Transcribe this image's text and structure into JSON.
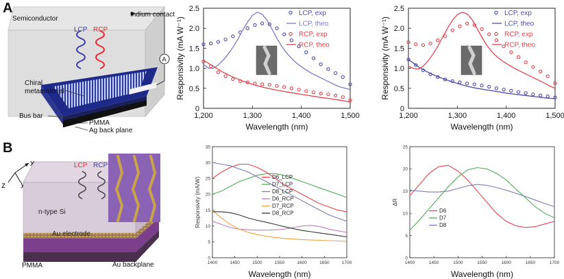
{
  "panels": {
    "a": "A",
    "b": "B"
  },
  "diagram_a": {
    "semiconductor": "Semiconductor",
    "indium": "Indium contact",
    "lcp": "LCP",
    "rcp": "RCP",
    "chiral1": "Chiral",
    "chiral2": "metamaterial",
    "busbar": "Bus bar",
    "pmma": "PMMA",
    "ag": "Ag back plane",
    "meter": "A"
  },
  "diagram_b": {
    "x": "x",
    "y": "y",
    "z": "z",
    "lcp": "LCP",
    "rcp": "RCP",
    "nsi": "n-type Si",
    "au_electrode": "Au electrode",
    "pmma": "PMMA",
    "au_backplane": "Au backplane"
  },
  "colors": {
    "blue": "#4b4ba8",
    "red": "#e8424a",
    "green": "#4caf50",
    "purple": "#c07cc4",
    "orange": "#f0a040",
    "black": "#333333",
    "slate": "#7a7ab8"
  },
  "chart_data": [
    {
      "id": "a1",
      "type": "line",
      "xlabel": "Wavelength (nm)",
      "ylabel": "Responsivity (mA W⁻¹)",
      "xlim": [
        1200,
        1500
      ],
      "ylim": [
        0,
        2.5
      ],
      "xticks": [
        1200,
        1300,
        1400,
        1500
      ],
      "xtick_labels": [
        "1,200",
        "1,300",
        "1,400",
        "1,500"
      ],
      "yticks": [
        0,
        0.5,
        1.0,
        1.5,
        2.0,
        2.5
      ],
      "ytick_labels": [
        "0",
        "0.5",
        "1.0",
        "1.5",
        "2.0",
        "2.5"
      ],
      "legend": [
        "LCP, exp",
        "LCP, theo",
        "RCP, exp",
        "RCP, theo"
      ],
      "series": [
        {
          "name": "LCP, exp",
          "kind": "scatter",
          "color": "#4b4ba8",
          "x": [
            1200,
            1215,
            1230,
            1245,
            1260,
            1275,
            1290,
            1305,
            1320,
            1335,
            1350,
            1365,
            1380,
            1395,
            1410,
            1425,
            1440,
            1455,
            1470,
            1485,
            1500
          ],
          "y": [
            1.6,
            1.62,
            1.66,
            1.72,
            1.8,
            1.9,
            2.0,
            2.08,
            2.12,
            2.1,
            2.0,
            1.85,
            1.7,
            1.55,
            1.4,
            1.25,
            1.1,
            0.98,
            0.88,
            0.78,
            0.6
          ]
        },
        {
          "name": "LCP, theo",
          "kind": "line",
          "color": "#7a7ac8",
          "x": [
            1200,
            1210,
            1220,
            1230,
            1240,
            1250,
            1260,
            1270,
            1280,
            1290,
            1300,
            1310,
            1320,
            1330,
            1340,
            1350,
            1360,
            1370,
            1380,
            1390,
            1400,
            1410,
            1420,
            1430,
            1440,
            1450,
            1460,
            1470,
            1480,
            1490,
            1500
          ],
          "y": [
            1.1,
            1.0,
            1.0,
            1.08,
            1.2,
            1.35,
            1.52,
            1.72,
            1.95,
            2.15,
            2.32,
            2.4,
            2.35,
            2.2,
            1.98,
            1.75,
            1.55,
            1.38,
            1.25,
            1.13,
            1.04,
            0.96,
            0.88,
            0.82,
            0.76,
            0.7,
            0.64,
            0.58,
            0.53,
            0.5,
            0.47
          ]
        },
        {
          "name": "RCP, exp",
          "kind": "scatter",
          "color": "#e8424a",
          "x": [
            1200,
            1215,
            1230,
            1245,
            1260,
            1275,
            1290,
            1305,
            1320,
            1335,
            1350,
            1365,
            1380,
            1395,
            1410,
            1425,
            1440,
            1455,
            1470,
            1485,
            1500
          ],
          "y": [
            1.17,
            1.05,
            0.9,
            0.8,
            0.73,
            0.68,
            0.65,
            0.62,
            0.6,
            0.59,
            0.56,
            0.53,
            0.5,
            0.47,
            0.43,
            0.4,
            0.37,
            0.35,
            0.32,
            0.28,
            0.2
          ]
        },
        {
          "name": "RCP, theo",
          "kind": "line",
          "color": "#e8424a",
          "x": [
            1200,
            1220,
            1240,
            1260,
            1280,
            1300,
            1320,
            1340,
            1360,
            1380,
            1400,
            1420,
            1440,
            1460,
            1480,
            1500
          ],
          "y": [
            1.2,
            1.05,
            0.9,
            0.78,
            0.68,
            0.6,
            0.53,
            0.48,
            0.43,
            0.39,
            0.35,
            0.31,
            0.27,
            0.24,
            0.2,
            0.16
          ]
        }
      ]
    },
    {
      "id": "a2",
      "type": "line",
      "xlabel": "Wavelength (nm)",
      "ylabel": "Responsivity (mA W⁻¹)",
      "xlim": [
        1200,
        1500
      ],
      "ylim": [
        0,
        2.5
      ],
      "xticks": [
        1200,
        1300,
        1400,
        1500
      ],
      "xtick_labels": [
        "1,200",
        "1,300",
        "1,400",
        "1,500"
      ],
      "yticks": [
        0,
        0.5,
        1.0,
        1.5,
        2.0,
        2.5
      ],
      "ytick_labels": [
        "0",
        "0.5",
        "1.0",
        "1.5",
        "2.0",
        "2.5"
      ],
      "legend": [
        "LCP, exp",
        "LCP, theo",
        "RCP, exp",
        "RCP, theo"
      ],
      "series": [
        {
          "name": "LCP, exp",
          "kind": "scatter",
          "color": "#4b4ba8",
          "x": [
            1200,
            1215,
            1230,
            1245,
            1260,
            1275,
            1290,
            1305,
            1320,
            1335,
            1350,
            1365,
            1380,
            1395,
            1410,
            1425,
            1440,
            1455,
            1470,
            1485,
            1500
          ],
          "y": [
            1.22,
            1.08,
            0.95,
            0.85,
            0.78,
            0.72,
            0.68,
            0.65,
            0.62,
            0.6,
            0.57,
            0.54,
            0.5,
            0.47,
            0.44,
            0.41,
            0.38,
            0.35,
            0.32,
            0.3,
            0.27
          ]
        },
        {
          "name": "LCP, theo",
          "kind": "line",
          "color": "#4b4ba8",
          "x": [
            1200,
            1220,
            1240,
            1260,
            1280,
            1300,
            1320,
            1340,
            1360,
            1380,
            1400,
            1420,
            1440,
            1460,
            1480,
            1500
          ],
          "y": [
            1.22,
            1.04,
            0.9,
            0.79,
            0.7,
            0.62,
            0.55,
            0.5,
            0.46,
            0.42,
            0.38,
            0.35,
            0.32,
            0.29,
            0.26,
            0.24
          ]
        },
        {
          "name": "RCP, exp",
          "kind": "scatter",
          "color": "#e8424a",
          "x": [
            1200,
            1215,
            1230,
            1245,
            1260,
            1275,
            1290,
            1305,
            1320,
            1335,
            1350,
            1365,
            1380,
            1395,
            1410,
            1425,
            1440,
            1455,
            1470,
            1485,
            1500
          ],
          "y": [
            1.65,
            1.6,
            1.58,
            1.62,
            1.7,
            1.8,
            1.95,
            2.05,
            2.12,
            2.08,
            1.98,
            1.85,
            1.7,
            1.55,
            1.4,
            1.28,
            1.15,
            1.03,
            0.92,
            0.8,
            0.63
          ]
        },
        {
          "name": "RCP, theo",
          "kind": "line",
          "color": "#e8424a",
          "x": [
            1200,
            1210,
            1220,
            1230,
            1240,
            1250,
            1260,
            1270,
            1280,
            1290,
            1300,
            1310,
            1320,
            1330,
            1340,
            1350,
            1360,
            1370,
            1380,
            1390,
            1400,
            1410,
            1420,
            1430,
            1440,
            1450,
            1460,
            1470,
            1480,
            1490,
            1500
          ],
          "y": [
            1.05,
            1.0,
            0.98,
            1.05,
            1.18,
            1.35,
            1.55,
            1.78,
            2.0,
            2.2,
            2.34,
            2.4,
            2.36,
            2.22,
            2.0,
            1.78,
            1.58,
            1.42,
            1.3,
            1.2,
            1.12,
            1.05,
            0.98,
            0.92,
            0.86,
            0.8,
            0.74,
            0.68,
            0.62,
            0.55,
            0.5
          ]
        }
      ]
    },
    {
      "id": "b1",
      "type": "line",
      "xlabel": "Wavelength (nm)",
      "ylabel": "Responsivity (mA/W)",
      "xlim": [
        1400,
        1700
      ],
      "ylim": [
        0,
        35
      ],
      "xticks": [
        1400,
        1450,
        1500,
        1550,
        1600,
        1650,
        1700
      ],
      "xtick_labels": [
        "1400",
        "1450",
        "1500",
        "1550",
        "1600",
        "1650",
        "1700"
      ],
      "yticks": [
        0,
        5,
        10,
        15,
        20,
        25,
        30,
        35
      ],
      "ytick_labels": [
        "0",
        "5",
        "10",
        "15",
        "20",
        "25",
        "30",
        "35"
      ],
      "legend": [
        "D6_LCP",
        "D7_LCP",
        "D8_LCP",
        "D6_RCP",
        "D7_RCP",
        "D8_RCP"
      ],
      "series": [
        {
          "name": "D6_LCP",
          "kind": "line",
          "color": "#e8424a",
          "x": [
            1400,
            1420,
            1440,
            1460,
            1480,
            1500,
            1520,
            1540,
            1560,
            1580,
            1600,
            1620,
            1640,
            1660,
            1680,
            1700
          ],
          "y": [
            25,
            27,
            28.5,
            29.5,
            29.5,
            28.5,
            27,
            25,
            23,
            21.5,
            20,
            18.5,
            17,
            16,
            15,
            14.5
          ]
        },
        {
          "name": "D7_LCP",
          "kind": "line",
          "color": "#4caf50",
          "x": [
            1400,
            1420,
            1440,
            1460,
            1480,
            1500,
            1520,
            1540,
            1560,
            1580,
            1600,
            1620,
            1640,
            1660,
            1680,
            1700
          ],
          "y": [
            20,
            21,
            22.5,
            24,
            25,
            26,
            26.5,
            26.5,
            26,
            25,
            24,
            23,
            22,
            21,
            20,
            19
          ]
        },
        {
          "name": "D8_LCP",
          "kind": "line",
          "color": "#7a7ab8",
          "x": [
            1400,
            1420,
            1440,
            1460,
            1480,
            1500,
            1520,
            1540,
            1560,
            1580,
            1600,
            1620,
            1640,
            1660,
            1680,
            1700
          ],
          "y": [
            30,
            29.5,
            29,
            28,
            27,
            25.5,
            24,
            22.5,
            21,
            19.5,
            18,
            16.5,
            15,
            13.5,
            12.5,
            11.5
          ]
        },
        {
          "name": "D6_RCP",
          "kind": "line",
          "color": "#c07cc4",
          "x": [
            1400,
            1420,
            1440,
            1460,
            1480,
            1500,
            1520,
            1540,
            1560,
            1580,
            1600,
            1620,
            1640,
            1660,
            1680,
            1700
          ],
          "y": [
            11.5,
            10.5,
            9.5,
            9,
            8.8,
            8.7,
            8.7,
            8.8,
            9,
            9.5,
            10,
            10.2,
            9.8,
            9,
            8.5,
            8
          ]
        },
        {
          "name": "D7_RCP",
          "kind": "line",
          "color": "#f0a040",
          "x": [
            1400,
            1420,
            1440,
            1460,
            1480,
            1500,
            1520,
            1540,
            1560,
            1580,
            1600,
            1620,
            1640,
            1660,
            1680,
            1700
          ],
          "y": [
            15,
            12.5,
            10.5,
            9,
            8,
            7.3,
            6.8,
            6.4,
            6.1,
            5.9,
            5.7,
            5.6,
            5.5,
            5.4,
            5.3,
            5.2
          ]
        },
        {
          "name": "D8_RCP",
          "kind": "line",
          "color": "#333333",
          "x": [
            1400,
            1420,
            1440,
            1460,
            1480,
            1500,
            1520,
            1540,
            1560,
            1580,
            1600,
            1620,
            1640,
            1660,
            1680,
            1700
          ],
          "y": [
            14.5,
            14.5,
            14.2,
            13.5,
            12.5,
            11.8,
            11.2,
            10.5,
            9.8,
            9.2,
            8.6,
            8.2,
            7.8,
            7.4,
            7,
            6.6
          ]
        }
      ]
    },
    {
      "id": "b2",
      "type": "line",
      "xlabel": "Wavelength (nm)",
      "ylabel": "ΔR",
      "xlim": [
        1400,
        1700
      ],
      "ylim": [
        0,
        25
      ],
      "xticks": [
        1400,
        1450,
        1500,
        1550,
        1600,
        1650,
        1700
      ],
      "xtick_labels": [
        "1400",
        "1450",
        "1500",
        "1550",
        "1600",
        "1650",
        "1700"
      ],
      "yticks": [
        0,
        5,
        10,
        15,
        20,
        25
      ],
      "ytick_labels": [
        "0",
        "5",
        "10",
        "15",
        "20",
        "25"
      ],
      "legend": [
        "D6",
        "D7",
        "D8"
      ],
      "series": [
        {
          "name": "D6",
          "kind": "line",
          "color": "#e8424a",
          "x": [
            1400,
            1420,
            1440,
            1460,
            1480,
            1500,
            1520,
            1540,
            1560,
            1580,
            1600,
            1620,
            1640,
            1660,
            1680,
            1700
          ],
          "y": [
            14,
            16.5,
            19,
            20.5,
            20.8,
            19.5,
            17.5,
            15,
            12.5,
            10,
            8.2,
            7.2,
            6.8,
            7,
            7.6,
            8.2
          ]
        },
        {
          "name": "D7",
          "kind": "line",
          "color": "#4caf50",
          "x": [
            1400,
            1420,
            1440,
            1460,
            1480,
            1500,
            1520,
            1540,
            1560,
            1580,
            1600,
            1620,
            1640,
            1660,
            1680,
            1700
          ],
          "y": [
            6.2,
            8.5,
            11,
            13.5,
            16,
            18.2,
            19.8,
            20.3,
            20,
            19,
            17.5,
            15.5,
            13.5,
            11.5,
            10,
            9
          ]
        },
        {
          "name": "D8",
          "kind": "line",
          "color": "#7a7ab8",
          "x": [
            1400,
            1420,
            1440,
            1460,
            1480,
            1500,
            1520,
            1540,
            1560,
            1580,
            1600,
            1620,
            1640,
            1660,
            1680,
            1700
          ],
          "y": [
            15.2,
            15,
            14.8,
            14.8,
            15,
            15.6,
            16.2,
            16.5,
            16.3,
            15.8,
            15.2,
            14.5,
            13.8,
            13,
            12.2,
            11.5
          ]
        }
      ]
    }
  ]
}
